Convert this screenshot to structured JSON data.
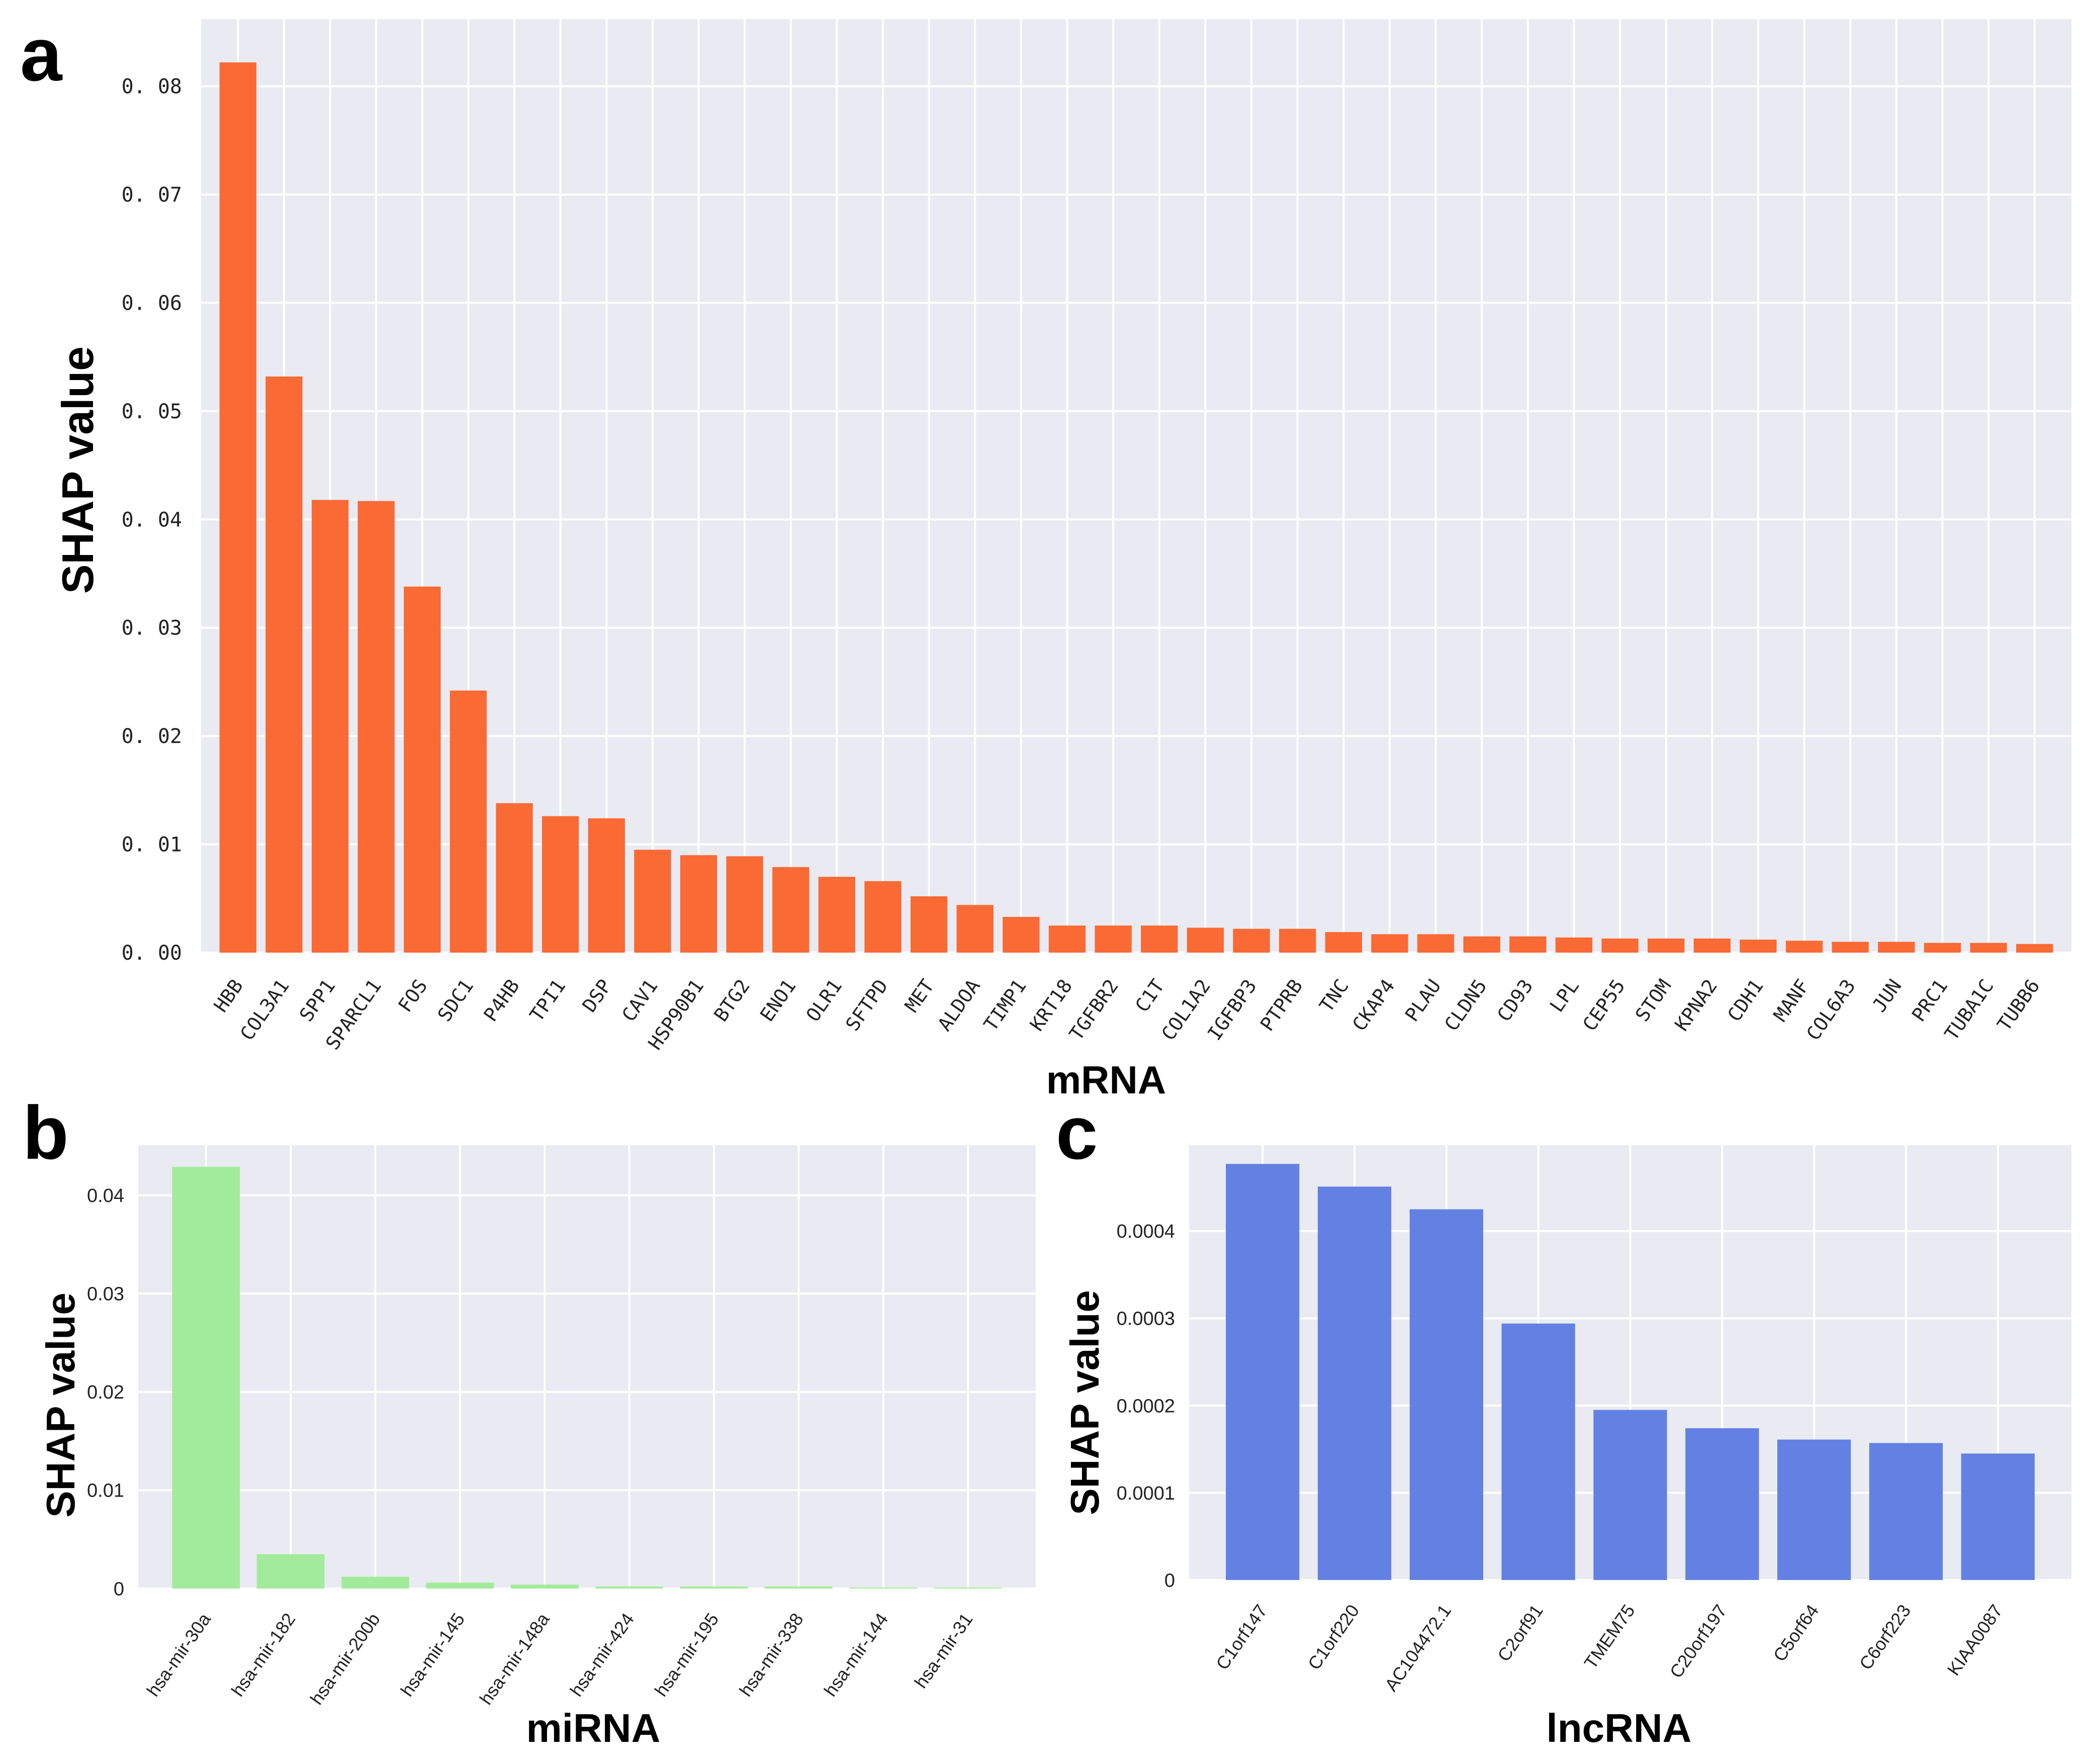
{
  "panels": [
    {
      "letter": "a",
      "color": "#f96a35",
      "chart_data": {
        "type": "bar",
        "categories": [
          "HBB",
          "COL3A1",
          "SPP1",
          "SPARCL1",
          "FOS",
          "SDC1",
          "P4HB",
          "TPI1",
          "DSP",
          "CAV1",
          "HSP90B1",
          "BTG2",
          "ENO1",
          "OLR1",
          "SFTPD",
          "MET",
          "ALDOA",
          "TIMP1",
          "KRT18",
          "TGFBR2",
          "C1T",
          "COL1A2",
          "IGFBP3",
          "PTPRB",
          "TNC",
          "CKAP4",
          "PLAU",
          "CLDN5",
          "CD93",
          "LPL",
          "CEP55",
          "STOM",
          "KPNA2",
          "CDH1",
          "MANF",
          "COL6A3",
          "JUN",
          "PRC1",
          "TUBA1C",
          "TUBB6"
        ],
        "values": [
          0.0822,
          0.0532,
          0.0418,
          0.0417,
          0.0338,
          0.0242,
          0.0138,
          0.0126,
          0.0124,
          0.0095,
          0.009,
          0.0089,
          0.0079,
          0.007,
          0.0066,
          0.0052,
          0.0044,
          0.0033,
          0.0025,
          0.0025,
          0.0025,
          0.0023,
          0.0022,
          0.0022,
          0.0019,
          0.0017,
          0.0017,
          0.0015,
          0.0015,
          0.0014,
          0.0013,
          0.0013,
          0.0013,
          0.0012,
          0.0011,
          0.001,
          0.001,
          0.0009,
          0.0009,
          0.0008
        ],
        "yticks": [
          0.0,
          0.01,
          0.02,
          0.03,
          0.04,
          0.05,
          0.06,
          0.07,
          0.08
        ],
        "ytick_labels": [
          "0. 00",
          "0. 01",
          "0. 02",
          "0. 03",
          "0. 04",
          "0. 05",
          "0. 06",
          "0. 07",
          "0. 08"
        ],
        "ylim": [
          0,
          0.0862
        ],
        "xlabel": "mRNA",
        "ylabel": "SHAP value"
      }
    },
    {
      "letter": "b",
      "color": "#a3eb9c",
      "chart_data": {
        "type": "bar",
        "categories": [
          "hsa-mir-30a",
          "hsa-mir-182",
          "hsa-mir-200b",
          "hsa-mir-145",
          "hsa-mir-148a",
          "hsa-mir-424",
          "hsa-mir-195",
          "hsa-mir-338",
          "hsa-mir-144",
          "hsa-mir-31"
        ],
        "values": [
          0.0429,
          0.0035,
          0.0012,
          0.0006,
          0.0004,
          0.0002,
          0.0002,
          0.0002,
          0.0001,
          0.0001
        ],
        "yticks": [
          0,
          0.01,
          0.02,
          0.03,
          0.04
        ],
        "ytick_labels": [
          "0",
          "0.01",
          "0.02",
          "0.03",
          "0.04"
        ],
        "ylim": [
          0,
          0.0451
        ],
        "xlabel": "miRNA",
        "ylabel": "SHAP value"
      }
    },
    {
      "letter": "c",
      "color": "#6281e2",
      "chart_data": {
        "type": "bar",
        "categories": [
          "C1orf147",
          "C1orf220",
          "AC104472.1",
          "C2orf91",
          "TMEM75",
          "C20orf197",
          "C5orf64",
          "C6orf223",
          "KIAA0087"
        ],
        "values": [
          0.000477,
          0.000451,
          0.000425,
          0.000294,
          0.000195,
          0.000174,
          0.000161,
          0.000157,
          0.000145
        ],
        "yticks": [
          0,
          0.0001,
          0.0002,
          0.0003,
          0.0004
        ],
        "ytick_labels": [
          "0",
          "0.0001",
          "0.0002",
          "0.0003",
          "0.0004"
        ],
        "ylim": [
          0,
          0.0004985
        ],
        "xlabel": "lncRNA",
        "ylabel": "SHAP value"
      }
    }
  ]
}
